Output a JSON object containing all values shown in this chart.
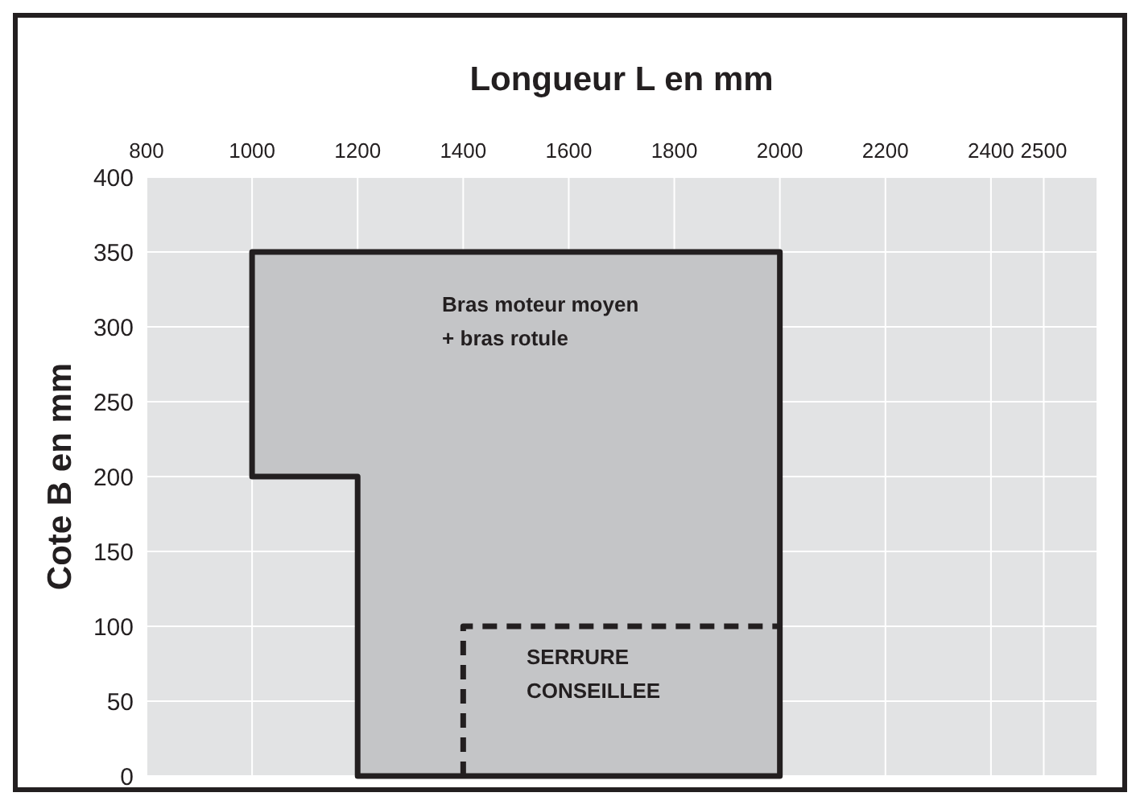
{
  "chart_data": {
    "type": "area",
    "xlabel": "Longueur L en mm",
    "ylabel": "Cote B en mm",
    "xlim": [
      800,
      2600
    ],
    "xticks": [
      800,
      1000,
      1200,
      1400,
      1600,
      1800,
      2000,
      2200,
      2400,
      2500
    ],
    "ylim": [
      0,
      400
    ],
    "yticks": [
      0,
      50,
      100,
      150,
      200,
      250,
      300,
      350,
      400
    ],
    "grid": true,
    "series": [
      {
        "color": "#c4c5c7",
        "x": [
          1000,
          2000,
          2000,
          1200,
          1200,
          1000,
          1000
        ],
        "values": [
          350,
          350,
          0,
          0,
          200,
          200,
          350
        ]
      },
      {
        "type": "line",
        "line_style": "dashed",
        "color": "#231f20",
        "x": [
          1400,
          1400,
          2000
        ],
        "values": [
          0,
          100,
          100
        ]
      }
    ],
    "annotations": [
      "Bras moteur moyen\n+ bras rotule",
      "SERRURE\nCONSEILLEE"
    ]
  }
}
